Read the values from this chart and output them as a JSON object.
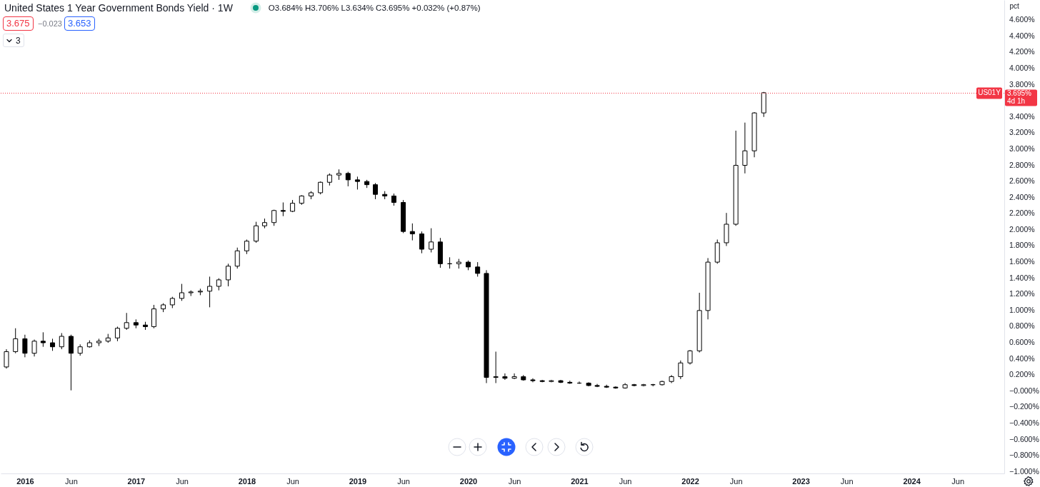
{
  "chart_data": {
    "type": "candlestick",
    "title": "United States 1 Year Government Bonds Yield · 1W",
    "ylabel": "pct",
    "color": "#000000",
    "x": [
      "2015-11",
      "2015-12",
      "2016-01",
      "2016-02",
      "2016-03",
      "2016-04",
      "2016-05",
      "2016-06",
      "2016-07",
      "2016-08",
      "2016-09",
      "2016-10",
      "2016-11",
      "2016-12",
      "2017-01",
      "2017-02",
      "2017-03",
      "2017-04",
      "2017-05",
      "2017-06",
      "2017-07",
      "2017-08",
      "2017-09",
      "2017-10",
      "2017-11",
      "2017-12",
      "2018-01",
      "2018-02",
      "2018-03",
      "2018-04",
      "2018-05",
      "2018-06",
      "2018-07",
      "2018-08",
      "2018-09",
      "2018-10",
      "2018-11",
      "2018-12",
      "2019-01",
      "2019-02",
      "2019-03",
      "2019-04",
      "2019-05",
      "2019-06",
      "2019-07",
      "2019-08",
      "2019-09",
      "2019-10",
      "2019-11",
      "2019-12",
      "2020-01",
      "2020-02",
      "2020-03",
      "2020-04",
      "2020-05",
      "2020-06",
      "2020-07",
      "2020-08",
      "2020-09",
      "2020-10",
      "2020-11",
      "2020-12",
      "2021-01",
      "2021-02",
      "2021-03",
      "2021-04",
      "2021-05",
      "2021-06",
      "2021-07",
      "2021-08",
      "2021-09",
      "2021-10",
      "2021-11",
      "2021-12",
      "2022-01",
      "2022-02",
      "2022-03",
      "2022-04",
      "2022-05",
      "2022-06",
      "2022-07",
      "2022-08",
      "2022-09"
    ],
    "ohlc": [
      [
        0.3,
        0.52,
        0.28,
        0.49
      ],
      [
        0.49,
        0.78,
        0.47,
        0.65
      ],
      [
        0.65,
        0.7,
        0.42,
        0.47
      ],
      [
        0.47,
        0.64,
        0.43,
        0.62
      ],
      [
        0.62,
        0.73,
        0.55,
        0.6
      ],
      [
        0.6,
        0.65,
        0.5,
        0.55
      ],
      [
        0.55,
        0.72,
        0.52,
        0.68
      ],
      [
        0.68,
        0.7,
        0.01,
        0.47
      ],
      [
        0.47,
        0.58,
        0.44,
        0.55
      ],
      [
        0.55,
        0.63,
        0.54,
        0.6
      ],
      [
        0.6,
        0.65,
        0.56,
        0.62
      ],
      [
        0.62,
        0.71,
        0.6,
        0.66
      ],
      [
        0.66,
        0.8,
        0.62,
        0.78
      ],
      [
        0.78,
        0.97,
        0.76,
        0.85
      ],
      [
        0.85,
        0.89,
        0.78,
        0.82
      ],
      [
        0.82,
        0.86,
        0.76,
        0.8
      ],
      [
        0.8,
        1.07,
        0.78,
        1.02
      ],
      [
        1.02,
        1.09,
        0.98,
        1.07
      ],
      [
        1.07,
        1.17,
        1.03,
        1.15
      ],
      [
        1.15,
        1.33,
        1.12,
        1.22
      ],
      [
        1.22,
        1.25,
        1.18,
        1.23
      ],
      [
        1.23,
        1.27,
        1.19,
        1.24
      ],
      [
        1.24,
        1.42,
        1.04,
        1.3
      ],
      [
        1.3,
        1.4,
        1.25,
        1.38
      ],
      [
        1.38,
        1.58,
        1.3,
        1.55
      ],
      [
        1.55,
        1.78,
        1.52,
        1.74
      ],
      [
        1.74,
        1.88,
        1.7,
        1.86
      ],
      [
        1.86,
        2.1,
        1.84,
        2.05
      ],
      [
        2.05,
        2.14,
        2.02,
        2.09
      ],
      [
        2.09,
        2.25,
        2.05,
        2.24
      ],
      [
        2.24,
        2.34,
        2.17,
        2.23
      ],
      [
        2.23,
        2.37,
        2.22,
        2.33
      ],
      [
        2.33,
        2.43,
        2.31,
        2.42
      ],
      [
        2.42,
        2.48,
        2.38,
        2.46
      ],
      [
        2.46,
        2.6,
        2.44,
        2.59
      ],
      [
        2.59,
        2.7,
        2.55,
        2.68
      ],
      [
        2.68,
        2.75,
        2.62,
        2.7
      ],
      [
        2.7,
        2.72,
        2.54,
        2.62
      ],
      [
        2.62,
        2.66,
        2.5,
        2.6
      ],
      [
        2.6,
        2.62,
        2.52,
        2.56
      ],
      [
        2.56,
        2.58,
        2.38,
        2.44
      ],
      [
        2.44,
        2.48,
        2.38,
        2.42
      ],
      [
        2.42,
        2.45,
        2.3,
        2.34
      ],
      [
        2.34,
        2.37,
        1.96,
        1.98
      ],
      [
        1.98,
        2.08,
        1.87,
        1.95
      ],
      [
        1.95,
        1.98,
        1.71,
        1.76
      ],
      [
        1.76,
        2.02,
        1.72,
        1.85
      ],
      [
        1.85,
        1.9,
        1.53,
        1.58
      ],
      [
        1.58,
        1.66,
        1.52,
        1.58
      ],
      [
        1.58,
        1.64,
        1.52,
        1.6
      ],
      [
        1.6,
        1.62,
        1.5,
        1.54
      ],
      [
        1.54,
        1.6,
        1.42,
        1.46
      ],
      [
        1.46,
        1.5,
        0.1,
        0.17
      ],
      [
        0.17,
        0.49,
        0.1,
        0.18
      ],
      [
        0.18,
        0.22,
        0.14,
        0.16
      ],
      [
        0.16,
        0.22,
        0.15,
        0.18
      ],
      [
        0.18,
        0.2,
        0.13,
        0.14
      ],
      [
        0.14,
        0.16,
        0.11,
        0.13
      ],
      [
        0.13,
        0.14,
        0.11,
        0.12
      ],
      [
        0.12,
        0.14,
        0.11,
        0.13
      ],
      [
        0.13,
        0.14,
        0.1,
        0.11
      ],
      [
        0.11,
        0.13,
        0.09,
        0.1
      ],
      [
        0.1,
        0.12,
        0.09,
        0.1
      ],
      [
        0.1,
        0.11,
        0.06,
        0.07
      ],
      [
        0.07,
        0.09,
        0.05,
        0.06
      ],
      [
        0.06,
        0.08,
        0.04,
        0.05
      ],
      [
        0.05,
        0.06,
        0.03,
        0.04
      ],
      [
        0.04,
        0.1,
        0.03,
        0.08
      ],
      [
        0.08,
        0.09,
        0.06,
        0.07
      ],
      [
        0.07,
        0.09,
        0.06,
        0.08
      ],
      [
        0.08,
        0.09,
        0.06,
        0.08
      ],
      [
        0.08,
        0.13,
        0.07,
        0.12
      ],
      [
        0.12,
        0.2,
        0.1,
        0.18
      ],
      [
        0.18,
        0.38,
        0.15,
        0.35
      ],
      [
        0.35,
        0.51,
        0.33,
        0.5
      ],
      [
        0.5,
        1.22,
        0.48,
        1.0
      ],
      [
        1.0,
        1.65,
        0.89,
        1.6
      ],
      [
        1.6,
        1.88,
        1.58,
        1.84
      ],
      [
        1.84,
        2.21,
        1.8,
        2.07
      ],
      [
        2.07,
        3.23,
        2.05,
        2.8
      ],
      [
        2.8,
        3.33,
        2.7,
        2.98
      ],
      [
        2.98,
        3.46,
        2.9,
        3.45
      ],
      [
        3.45,
        3.71,
        3.4,
        3.7
      ]
    ],
    "xlim": [
      "2015-10-25",
      "2024-10-21"
    ],
    "xticks": [
      {
        "value": "2016-01",
        "label": "2016"
      },
      {
        "value": "2016-06",
        "label": "Jun"
      },
      {
        "value": "2017-01",
        "label": "2017"
      },
      {
        "value": "2017-06",
        "label": "Jun"
      },
      {
        "value": "2018-01",
        "label": "2018"
      },
      {
        "value": "2018-06",
        "label": "Jun"
      },
      {
        "value": "2019-01",
        "label": "2019"
      },
      {
        "value": "2019-06",
        "label": "Jun"
      },
      {
        "value": "2020-01",
        "label": "2020"
      },
      {
        "value": "2020-06",
        "label": "Jun"
      },
      {
        "value": "2021-01",
        "label": "2021"
      },
      {
        "value": "2021-06",
        "label": "Jun"
      },
      {
        "value": "2022-01",
        "label": "2022"
      },
      {
        "value": "2022-06",
        "label": "Jun"
      },
      {
        "value": "2023-01",
        "label": "2023"
      },
      {
        "value": "2023-06",
        "label": "Jun"
      },
      {
        "value": "2024-01",
        "label": "2024"
      },
      {
        "value": "2024-06",
        "label": "Jun"
      }
    ],
    "ylim": [
      -1.02,
      4.85
    ],
    "yticks": [
      {
        "value": 4.6,
        "label": "4.600%"
      },
      {
        "value": 4.4,
        "label": "4.400%"
      },
      {
        "value": 4.2,
        "label": "4.200%"
      },
      {
        "value": 4.0,
        "label": "4.000%"
      },
      {
        "value": 3.8,
        "label": "3.800%"
      },
      {
        "value": 3.4,
        "label": "3.400%"
      },
      {
        "value": 3.2,
        "label": "3.200%"
      },
      {
        "value": 3.0,
        "label": "3.000%"
      },
      {
        "value": 2.8,
        "label": "2.800%"
      },
      {
        "value": 2.6,
        "label": "2.600%"
      },
      {
        "value": 2.4,
        "label": "2.400%"
      },
      {
        "value": 2.2,
        "label": "2.200%"
      },
      {
        "value": 2.0,
        "label": "2.000%"
      },
      {
        "value": 1.8,
        "label": "1.800%"
      },
      {
        "value": 1.6,
        "label": "1.600%"
      },
      {
        "value": 1.4,
        "label": "1.400%"
      },
      {
        "value": 1.2,
        "label": "1.200%"
      },
      {
        "value": 1.0,
        "label": "1.000%"
      },
      {
        "value": 0.8,
        "label": "0.800%"
      },
      {
        "value": 0.6,
        "label": "0.600%"
      },
      {
        "value": 0.4,
        "label": "0.400%"
      },
      {
        "value": 0.2,
        "label": "0.200%"
      },
      {
        "value": 0,
        "label": "−0.000%"
      },
      {
        "value": -0.2,
        "label": "−0.200%"
      },
      {
        "value": -0.4,
        "label": "−0.400%"
      },
      {
        "value": -0.6,
        "label": "−0.600%"
      },
      {
        "value": -0.8,
        "label": "−0.800%"
      },
      {
        "value": -1.0,
        "label": "−1.000%"
      }
    ],
    "ref_lines": [
      {
        "axis": "y",
        "value": 3.695,
        "label": "US01Y",
        "color": "#f23645",
        "line_style": "dotted"
      }
    ],
    "annotations": [
      "O3.684% H3.706% L3.634% C3.695% +0.032% (+0.87%)",
      "3.675",
      "−0.023",
      "3.653",
      "3",
      "3.695%",
      "4d 1h"
    ]
  }
}
